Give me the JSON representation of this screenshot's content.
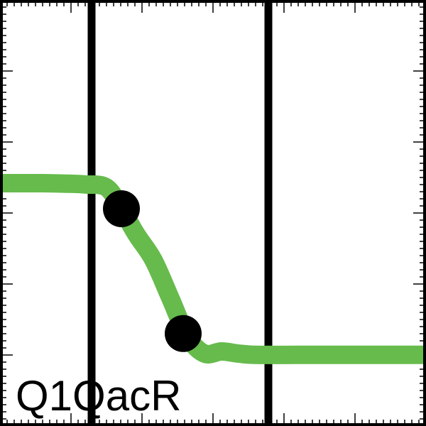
{
  "chart_data": {
    "type": "line",
    "annotation": "Q1QacR",
    "colors": {
      "curve": "#66bb4c",
      "markers": "#000000",
      "vlines": "#000000",
      "frame": "#000000"
    },
    "xlim": [
      0,
      10
    ],
    "ylim": [
      0,
      1
    ],
    "grid": false,
    "legend": "none",
    "series": [
      {
        "x": [
          0,
          0.5,
          1.0,
          1.5,
          2.0,
          2.5,
          2.85,
          3.2,
          3.6,
          4.0,
          4.4,
          4.8,
          5.2,
          5.6,
          6.0,
          7.0,
          8.0,
          9.0,
          10.0
        ],
        "y": [
          0.57,
          0.57,
          0.57,
          0.569,
          0.567,
          0.56,
          0.51,
          0.45,
          0.39,
          0.3,
          0.21,
          0.17,
          0.175,
          0.17,
          0.167,
          0.167,
          0.167,
          0.167,
          0.167
        ]
      }
    ],
    "points": [
      {
        "x": 2.85,
        "y": 0.51
      },
      {
        "x": 4.3,
        "y": 0.217
      }
    ],
    "vlines": [
      2.15,
      6.3
    ]
  }
}
